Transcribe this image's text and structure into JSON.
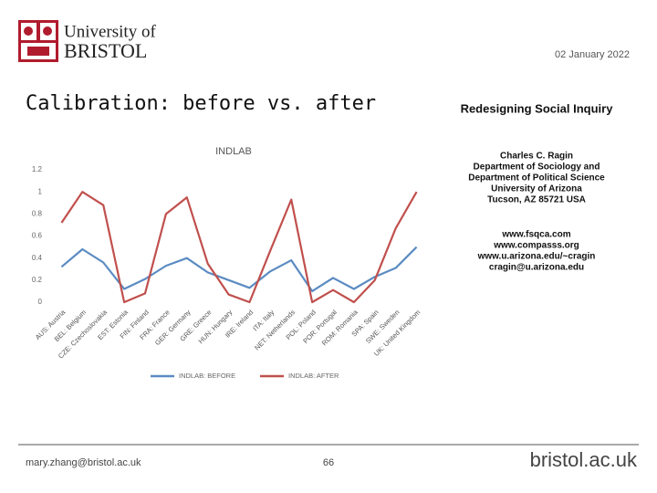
{
  "header": {
    "logo_line1": "University of",
    "logo_line2": "BRISTOL",
    "date": "02 January 2022"
  },
  "slide_title": "Calibration: before vs. after",
  "side_panel": {
    "title": "Redesigning Social Inquiry",
    "lines": [
      "Charles C. Ragin",
      "Department of Sociology and",
      "Department of Political Science",
      "University of Arizona",
      "Tucson, AZ 85721 USA"
    ],
    "links": [
      "www.fsqca.com",
      "www.compasss.org",
      "www.u.arizona.edu/~cragin",
      "cragin@u.arizona.edu"
    ]
  },
  "footer": {
    "email": "mary.zhang@bristol.ac.uk",
    "page": "66",
    "site": "bristol.ac.uk"
  },
  "chart_data": {
    "type": "line",
    "title": "INDLAB",
    "categories": [
      "AUS: Austria",
      "BEL: Belgium",
      "CZE: Czechoslovakia",
      "EST: Estonia",
      "FIN: Finland",
      "FRA: France",
      "GER: Germany",
      "GRE: Greece",
      "HUN: Hungary",
      "IRE: Ireland",
      "ITA: Italy",
      "NET: Netherlands",
      "POL: Poland",
      "POR: Portugal",
      "ROM: Romania",
      "SPA: Spain",
      "SWE: Sweden",
      "UK: United Kingdom"
    ],
    "series": [
      {
        "name": "INDLAB: BEFORE",
        "color": "#5b8bc2",
        "values": [
          0.32,
          0.48,
          0.36,
          0.12,
          0.21,
          0.33,
          0.4,
          0.27,
          0.2,
          0.13,
          0.28,
          0.38,
          0.1,
          0.22,
          0.12,
          0.23,
          0.31,
          0.5
        ]
      },
      {
        "name": "INDLAB: AFTER",
        "color": "#c0504d",
        "values": [
          0.72,
          1.0,
          0.88,
          0.0,
          0.08,
          0.8,
          0.95,
          0.35,
          0.07,
          0.0,
          0.47,
          0.93,
          0.0,
          0.11,
          0.0,
          0.2,
          0.67,
          1.0
        ]
      }
    ],
    "ylim": [
      0,
      1.2
    ],
    "yticks": [
      0,
      0.2,
      0.4,
      0.6,
      0.8,
      1,
      1.2
    ],
    "grid": false,
    "legend": "bottom"
  }
}
